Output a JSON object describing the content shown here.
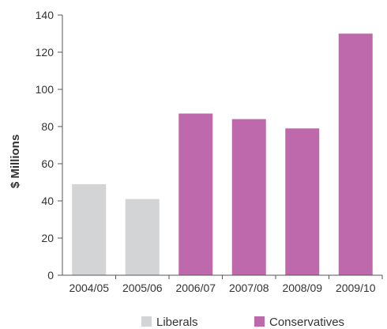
{
  "chart_data": {
    "type": "bar",
    "categories": [
      "2004/05",
      "2005/06",
      "2006/07",
      "2007/08",
      "2008/09",
      "2009/10"
    ],
    "values": [
      49,
      41,
      87,
      84,
      79,
      130
    ],
    "party": [
      "Liberals",
      "Liberals",
      "Conservatives",
      "Conservatives",
      "Conservatives",
      "Conservatives"
    ],
    "ylabel": "$ Millions",
    "xlabel": "",
    "ylim": [
      0,
      140
    ],
    "yticks": [
      0,
      20,
      40,
      60,
      80,
      100,
      120,
      140
    ],
    "grid": false,
    "legend": {
      "placement": "bottom",
      "entries": [
        {
          "name": "Liberals",
          "color": "#d3d4d6"
        },
        {
          "name": "Conservatives",
          "color": "#bd69ab"
        }
      ]
    }
  }
}
